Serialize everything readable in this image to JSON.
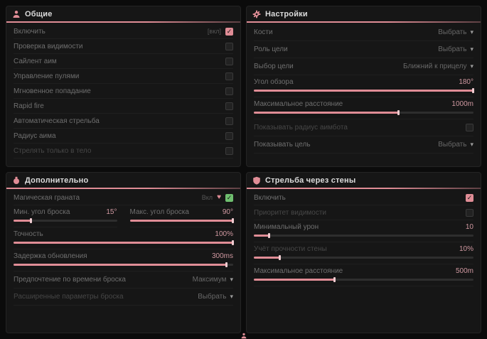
{
  "colors": {
    "accent": "#e08d96",
    "accent_light": "#f0cdd1",
    "green": "#6fbf6f"
  },
  "icons": {
    "check": "✓",
    "chevron": "▾",
    "heart": "♥"
  },
  "panel_general": {
    "title": "Общие",
    "enable": {
      "label": "Включить",
      "hotkey": "[вкл]",
      "checked": true
    },
    "items": [
      {
        "label": "Проверка видимости"
      },
      {
        "label": "Сайлент аим"
      },
      {
        "label": "Управление пулями"
      },
      {
        "label": "Мгновенное попадание"
      },
      {
        "label": "Rapid fire"
      },
      {
        "label": "Автоматическая стрельба"
      },
      {
        "label": "Радиус аима"
      },
      {
        "label": "Стрелять только в тело"
      }
    ]
  },
  "panel_settings": {
    "title": "Настройки",
    "bones": {
      "label": "Кости",
      "value": "Выбрать"
    },
    "target_role": {
      "label": "Роль цели",
      "value": "Выбрать"
    },
    "target_choice": {
      "label": "Выбор цели",
      "value": "Ближний к прицелу"
    },
    "fov": {
      "label": "Угол обзора",
      "value": "180°",
      "percent": 100
    },
    "max_distance": {
      "label": "Максимальное расстояние",
      "value": "1000m",
      "percent": 66
    },
    "show_aim_radius": {
      "label": "Показывать радиус аимбота",
      "checked": false
    },
    "show_target": {
      "label": "Показывать цель",
      "value": "Выбрать"
    }
  },
  "panel_extra": {
    "title": "Дополнительно",
    "magic_grenade": {
      "label": "Магическая граната",
      "status": "Вкл"
    },
    "min_angle": {
      "label": "Мин. угол броска",
      "value": "15°",
      "percent": 17
    },
    "max_angle": {
      "label": "Макс. угол броска",
      "value": "90°",
      "percent": 100
    },
    "accuracy": {
      "label": "Точность",
      "value": "100%",
      "percent": 100
    },
    "update_delay": {
      "label": "Задержка обновления",
      "value": "300ms",
      "percent": 97
    },
    "throw_time": {
      "label": "Предпочтение по времени броска",
      "value": "Максимум"
    },
    "advanced": {
      "label": "Расширенные параметры броска",
      "value": "Выбрать"
    }
  },
  "panel_wallbang": {
    "title": "Стрельба через стены",
    "enable": {
      "label": "Включить",
      "checked": true
    },
    "visibility_priority": {
      "label": "Приоритет видимости",
      "checked": false
    },
    "min_damage": {
      "label": "Минимальный урон",
      "value": "10",
      "percent": 7
    },
    "wall_strength": {
      "label": "Учёт прочности стены",
      "value": "10%",
      "percent": 12
    },
    "max_distance": {
      "label": "Максимальное расстояние",
      "value": "500m",
      "percent": 37
    }
  }
}
